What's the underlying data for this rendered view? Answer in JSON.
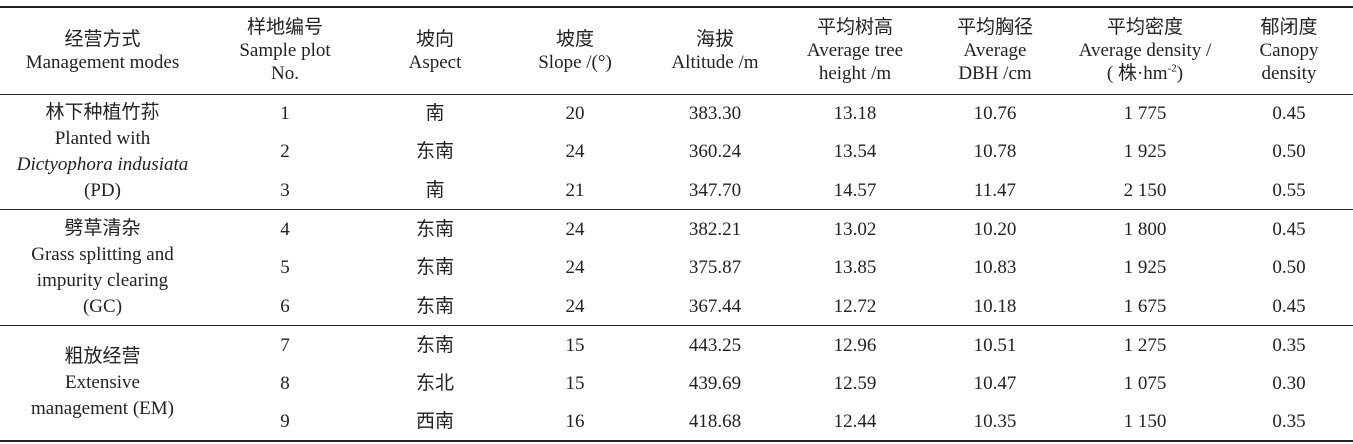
{
  "table": {
    "header": [
      [
        "经营方式",
        "Management modes"
      ],
      [
        "样地编号",
        "Sample plot",
        "No."
      ],
      [
        "坡向",
        "Aspect"
      ],
      [
        "坡度",
        "Slope /(°)"
      ],
      [
        "海拔",
        "Altitude /m"
      ],
      [
        "平均树高",
        "Average tree",
        "height /m"
      ],
      [
        "平均胸径",
        "Average",
        "DBH /cm"
      ],
      [
        "平均密度",
        "Average density /",
        {
          "pre": "( 株·hm",
          "sup": "-2",
          "post": ")"
        }
      ],
      [
        "郁闭度",
        "Canopy",
        "density"
      ]
    ],
    "groups": [
      {
        "label": [
          "林下种植竹荪",
          "Planted with",
          "Dictyophora indusiata",
          "(PD)"
        ],
        "rows": [
          [
            "1",
            "南",
            "20",
            "383.30",
            "13.18",
            "10.76",
            "1 775",
            "0.45"
          ],
          [
            "2",
            "东南",
            "24",
            "360.24",
            "13.54",
            "10.78",
            "1 925",
            "0.50"
          ],
          [
            "3",
            "南",
            "21",
            "347.70",
            "14.57",
            "11.47",
            "2 150",
            "0.55"
          ]
        ]
      },
      {
        "label": [
          "劈草清杂",
          "Grass splitting and",
          "impurity clearing",
          "(GC)"
        ],
        "rows": [
          [
            "4",
            "东南",
            "24",
            "382.21",
            "13.02",
            "10.20",
            "1 800",
            "0.45"
          ],
          [
            "5",
            "东南",
            "24",
            "375.87",
            "13.85",
            "10.83",
            "1 925",
            "0.50"
          ],
          [
            "6",
            "东南",
            "24",
            "367.44",
            "12.72",
            "10.18",
            "1 675",
            "0.45"
          ]
        ]
      },
      {
        "label": [
          "粗放经营",
          "Extensive",
          "management (EM)"
        ],
        "rows": [
          [
            "7",
            "东南",
            "15",
            "443.25",
            "12.96",
            "10.51",
            "1 275",
            "0.35"
          ],
          [
            "8",
            "东北",
            "15",
            "439.69",
            "12.59",
            "10.47",
            "1 075",
            "0.30"
          ],
          [
            "9",
            "西南",
            "16",
            "418.68",
            "12.44",
            "10.35",
            "1 150",
            "0.35"
          ]
        ]
      }
    ]
  }
}
